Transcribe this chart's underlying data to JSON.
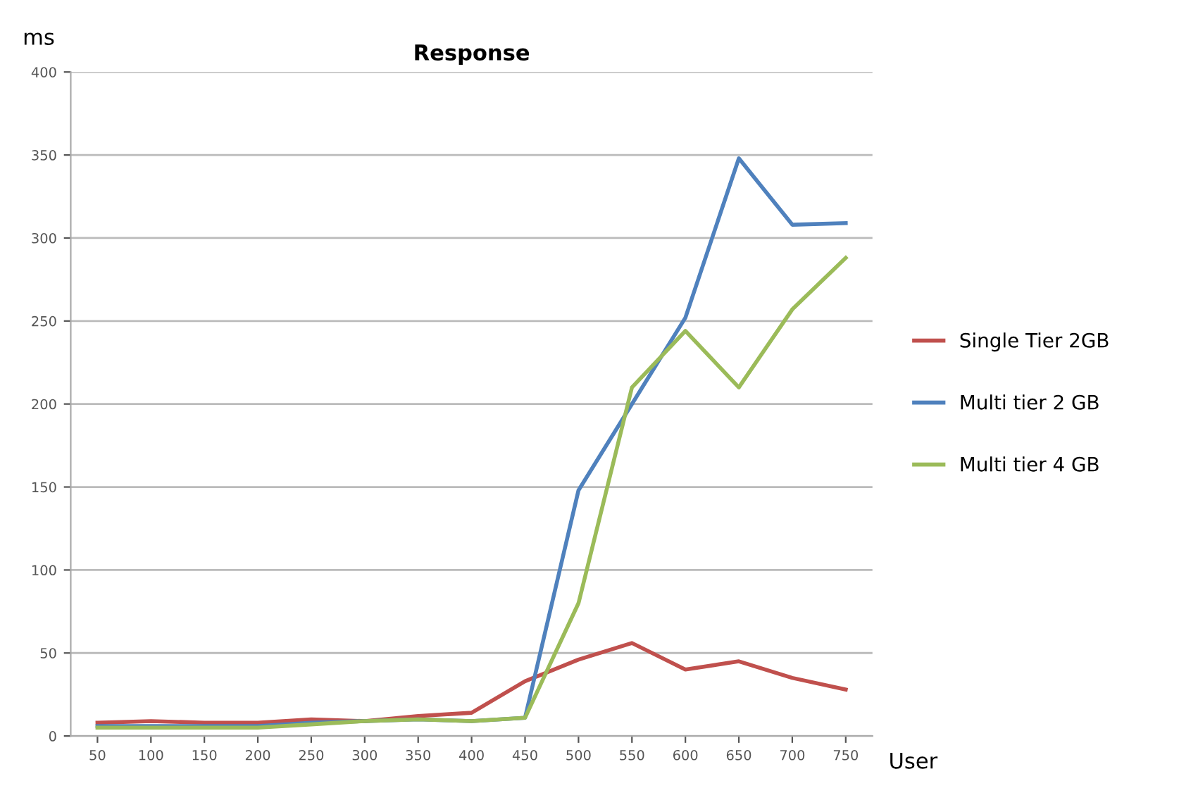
{
  "chart_data": {
    "type": "line",
    "title": "Response",
    "xlabel": "User",
    "ylabel": "ms",
    "categories": [
      "50",
      "100",
      "150",
      "200",
      "250",
      "300",
      "350",
      "400",
      "450",
      "500",
      "550",
      "600",
      "650",
      "700",
      "750"
    ],
    "series": [
      {
        "name": "Single Tier 2GB",
        "color": "#c0504d",
        "values": [
          8,
          9,
          8,
          8,
          10,
          9,
          12,
          14,
          33,
          46,
          56,
          40,
          45,
          35,
          28
        ]
      },
      {
        "name": "Multi tier 2 GB",
        "color": "#4f81bd",
        "values": [
          6,
          6,
          6,
          6,
          8,
          9,
          10,
          9,
          11,
          148,
          200,
          252,
          348,
          308,
          309
        ]
      },
      {
        "name": "Multi tier 4 GB",
        "color": "#9bbb59",
        "values": [
          5,
          5,
          5,
          5,
          7,
          9,
          10,
          9,
          11,
          80,
          210,
          244,
          210,
          257,
          288
        ]
      }
    ],
    "ylim": [
      0,
      400
    ],
    "yticks": [
      0,
      50,
      100,
      150,
      200,
      250,
      300,
      350,
      400
    ],
    "grid": "y",
    "legend": "right"
  }
}
